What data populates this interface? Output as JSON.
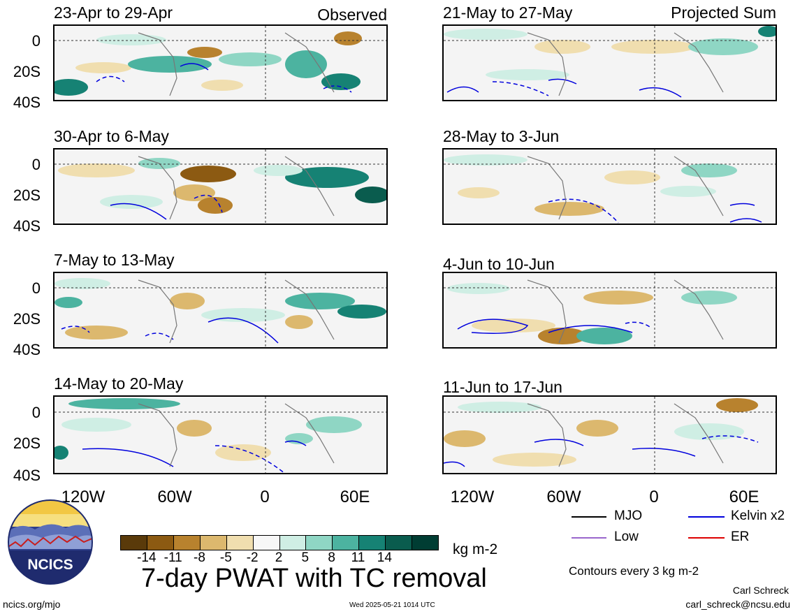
{
  "labels": {
    "observed": "Observed",
    "projected": "Projected Sum",
    "lat": [
      "0",
      "20S",
      "40S"
    ],
    "lon": [
      "120W",
      "60W",
      "0",
      "60E"
    ]
  },
  "panels_left": [
    {
      "title": "23-Apr to 29-Apr"
    },
    {
      "title": "30-Apr to 6-May"
    },
    {
      "title": "7-May to 13-May"
    },
    {
      "title": "14-May to 20-May"
    }
  ],
  "panels_right": [
    {
      "title": "21-May to 27-May"
    },
    {
      "title": "28-May to 3-Jun"
    },
    {
      "title": "4-Jun to 10-Jun"
    },
    {
      "title": "11-Jun to 17-Jun"
    }
  ],
  "legend": {
    "items": [
      {
        "label": "MJO",
        "color": "#000000"
      },
      {
        "label": "Kelvin x2",
        "color": "#0000dd"
      },
      {
        "label": "Low",
        "color": "#9966cc"
      },
      {
        "label": "ER",
        "color": "#dd0000"
      }
    ],
    "contours_note": "Contours every 3 kg m-2"
  },
  "colorbar": {
    "colors": [
      "#5a3a0a",
      "#8c5a12",
      "#b8822e",
      "#dcb86e",
      "#f0deaf",
      "#f7f7f7",
      "#cfeee4",
      "#8fd6c4",
      "#4cb3a0",
      "#168274",
      "#0a5c4e",
      "#003d33"
    ],
    "tick_labels": [
      "-14",
      "-11",
      "-8",
      "-5",
      "-2",
      "2",
      "5",
      "8",
      "11",
      "14"
    ],
    "units": "kg m-2"
  },
  "title": "7-day PWAT with TC removal",
  "logo_text": "NCICS",
  "footer": {
    "url": "ncics.org/mjo",
    "timestamp": "Wed 2025-05-21 1014 UTC",
    "author": "Carl Schreck",
    "email": "carl_schreck@ncsu.edu"
  }
}
